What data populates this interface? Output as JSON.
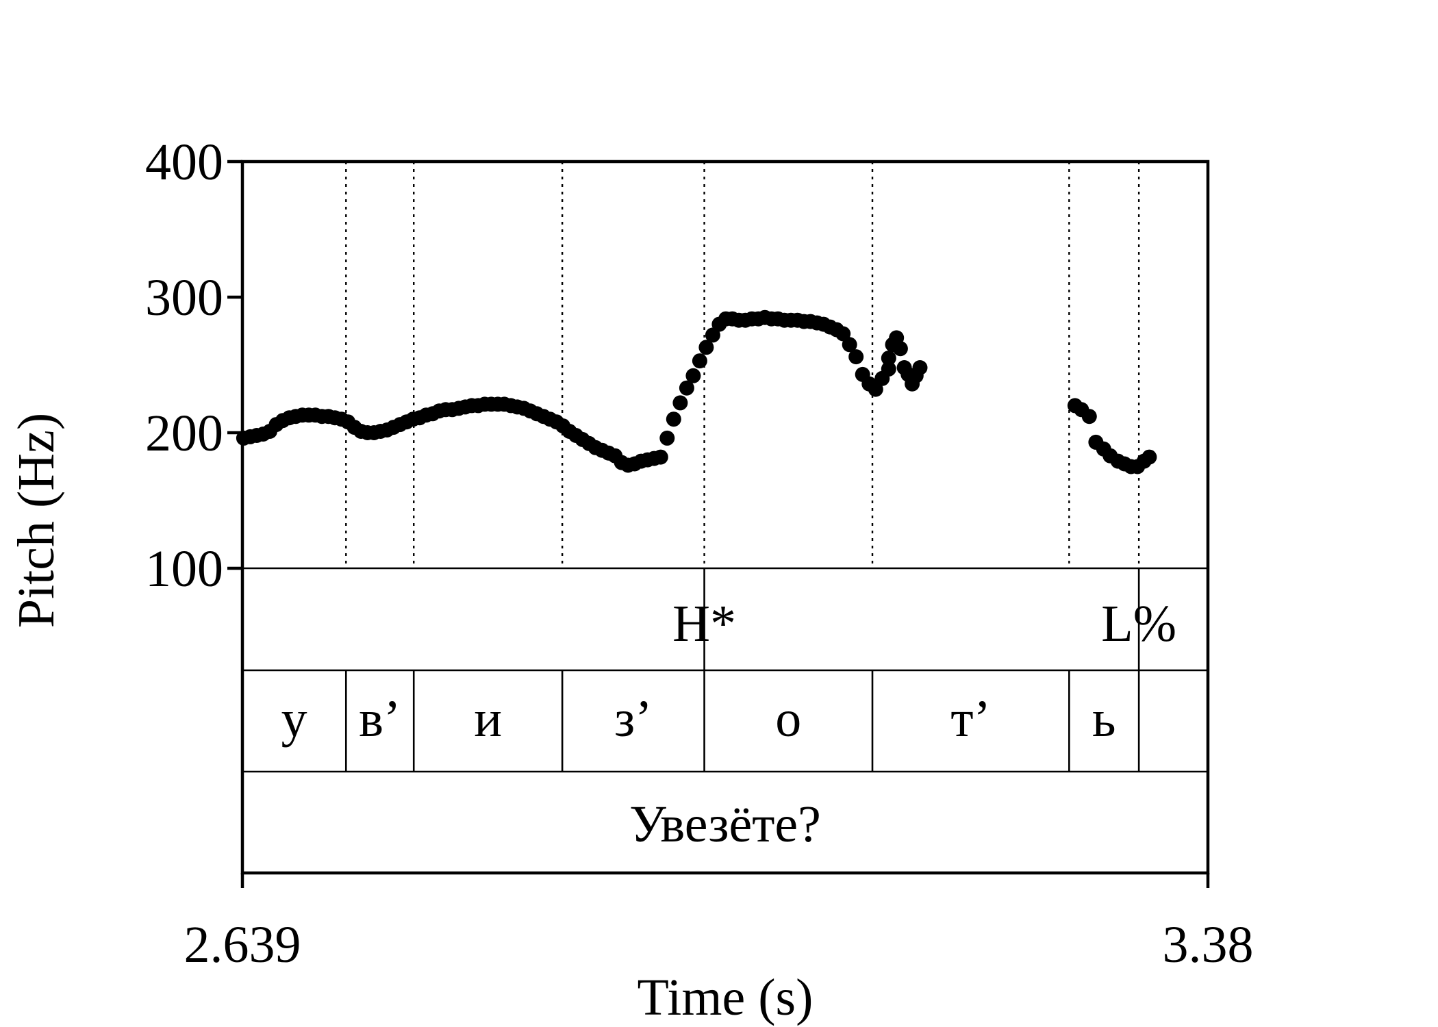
{
  "chart_data": {
    "type": "scatter",
    "title": "",
    "xlabel": "Time (s)",
    "ylabel": "Pitch (Hz)",
    "xlim": [
      2.639,
      3.38
    ],
    "ylim": [
      100,
      400
    ],
    "x_tick_labels": [
      "2.639",
      "3.38"
    ],
    "y_ticks": [
      100,
      200,
      300,
      400
    ],
    "y_tick_labels": [
      "100",
      "200",
      "300",
      "400"
    ],
    "grid": false,
    "boundaries": [
      2.7185,
      2.7705,
      2.8845,
      2.9935,
      3.1225,
      3.2735,
      3.327
    ],
    "tone_tier": [
      {
        "t": 2.9935,
        "label": "H*"
      },
      {
        "t": 3.327,
        "label": "L%"
      }
    ],
    "segment_tier": [
      {
        "start": 2.639,
        "end": 2.7185,
        "label": "у"
      },
      {
        "start": 2.7185,
        "end": 2.7705,
        "label": "в’"
      },
      {
        "start": 2.7705,
        "end": 2.8845,
        "label": "и"
      },
      {
        "start": 2.8845,
        "end": 2.9935,
        "label": "з’"
      },
      {
        "start": 2.9935,
        "end": 3.1225,
        "label": "о"
      },
      {
        "start": 3.1225,
        "end": 3.2735,
        "label": "т’"
      },
      {
        "start": 3.2735,
        "end": 3.327,
        "label": "ь"
      },
      {
        "start": 3.327,
        "end": 3.38,
        "label": ""
      }
    ],
    "word_tier": [
      {
        "start": 2.639,
        "end": 3.38,
        "label": "Увезёте?"
      }
    ],
    "series": [
      {
        "type": "pitch-track",
        "segments": [
          [
            [
              2.64,
              196
            ],
            [
              2.645,
              197
            ],
            [
              2.65,
              198
            ],
            [
              2.655,
              199
            ],
            [
              2.66,
              201
            ],
            [
              2.665,
              206
            ],
            [
              2.67,
              209
            ],
            [
              2.675,
              211
            ],
            [
              2.68,
              212
            ],
            [
              2.685,
              213
            ],
            [
              2.69,
              213
            ],
            [
              2.695,
              213
            ],
            [
              2.7,
              212
            ],
            [
              2.705,
              212
            ],
            [
              2.71,
              211
            ],
            [
              2.715,
              210
            ],
            [
              2.72,
              208
            ],
            [
              2.725,
              204
            ],
            [
              2.73,
              201
            ],
            [
              2.735,
              200
            ],
            [
              2.74,
              200
            ],
            [
              2.745,
              201
            ],
            [
              2.75,
              202
            ],
            [
              2.755,
              204
            ],
            [
              2.76,
              206
            ],
            [
              2.765,
              208
            ],
            [
              2.77,
              210
            ],
            [
              2.775,
              211
            ],
            [
              2.78,
              213
            ],
            [
              2.785,
              214
            ],
            [
              2.79,
              216
            ],
            [
              2.795,
              217
            ],
            [
              2.8,
              217
            ],
            [
              2.805,
              218
            ],
            [
              2.81,
              219
            ],
            [
              2.815,
              220
            ],
            [
              2.82,
              220
            ],
            [
              2.825,
              221
            ],
            [
              2.83,
              221
            ],
            [
              2.835,
              221
            ],
            [
              2.84,
              221
            ],
            [
              2.845,
              220
            ],
            [
              2.85,
              219
            ],
            [
              2.855,
              218
            ],
            [
              2.86,
              216
            ],
            [
              2.865,
              214
            ],
            [
              2.87,
              212
            ],
            [
              2.875,
              210
            ],
            [
              2.88,
              208
            ],
            [
              2.885,
              205
            ],
            [
              2.89,
              201
            ],
            [
              2.895,
              198
            ],
            [
              2.9,
              195
            ],
            [
              2.905,
              192
            ],
            [
              2.91,
              189
            ],
            [
              2.915,
              187
            ],
            [
              2.92,
              185
            ],
            [
              2.925,
              183
            ],
            [
              2.93,
              178
            ],
            [
              2.935,
              176
            ],
            [
              2.94,
              177
            ],
            [
              2.945,
              179
            ],
            [
              2.95,
              180
            ],
            [
              2.955,
              181
            ],
            [
              2.96,
              182
            ],
            [
              2.965,
              196
            ],
            [
              2.97,
              210
            ],
            [
              2.975,
              222
            ],
            [
              2.98,
              233
            ],
            [
              2.985,
              242
            ],
            [
              2.99,
              253
            ],
            [
              2.995,
              263
            ],
            [
              3.0,
              272
            ],
            [
              3.005,
              280
            ],
            [
              3.01,
              284
            ],
            [
              3.015,
              284
            ],
            [
              3.02,
              283
            ],
            [
              3.025,
              283
            ],
            [
              3.03,
              284
            ],
            [
              3.035,
              284
            ],
            [
              3.04,
              285
            ],
            [
              3.045,
              284
            ],
            [
              3.05,
              284
            ],
            [
              3.055,
              283
            ],
            [
              3.06,
              283
            ],
            [
              3.065,
              283
            ],
            [
              3.07,
              282
            ],
            [
              3.075,
              282
            ],
            [
              3.08,
              281
            ],
            [
              3.085,
              280
            ],
            [
              3.09,
              278
            ],
            [
              3.095,
              276
            ],
            [
              3.1,
              273
            ],
            [
              3.105,
              265
            ],
            [
              3.11,
              256
            ],
            [
              3.115,
              243
            ],
            [
              3.12,
              236
            ],
            [
              3.125,
              232
            ],
            [
              3.13,
              240
            ],
            [
              3.135,
              247
            ]
          ],
          [
            [
              3.135,
              255
            ],
            [
              3.138,
              265
            ],
            [
              3.141,
              270
            ],
            [
              3.144,
              262
            ],
            [
              3.147,
              248
            ],
            [
              3.15,
              243
            ],
            [
              3.153,
              236
            ],
            [
              3.156,
              242
            ],
            [
              3.159,
              248
            ]
          ],
          [
            [
              3.278,
              220
            ],
            [
              3.283,
              217
            ],
            [
              3.289,
              212
            ],
            [
              3.294,
              193
            ],
            [
              3.3,
              188
            ],
            [
              3.305,
              183
            ],
            [
              3.311,
              179
            ],
            [
              3.316,
              177
            ],
            [
              3.321,
              175
            ],
            [
              3.326,
              175
            ],
            [
              3.331,
              179
            ],
            [
              3.335,
              182
            ]
          ]
        ]
      }
    ]
  }
}
